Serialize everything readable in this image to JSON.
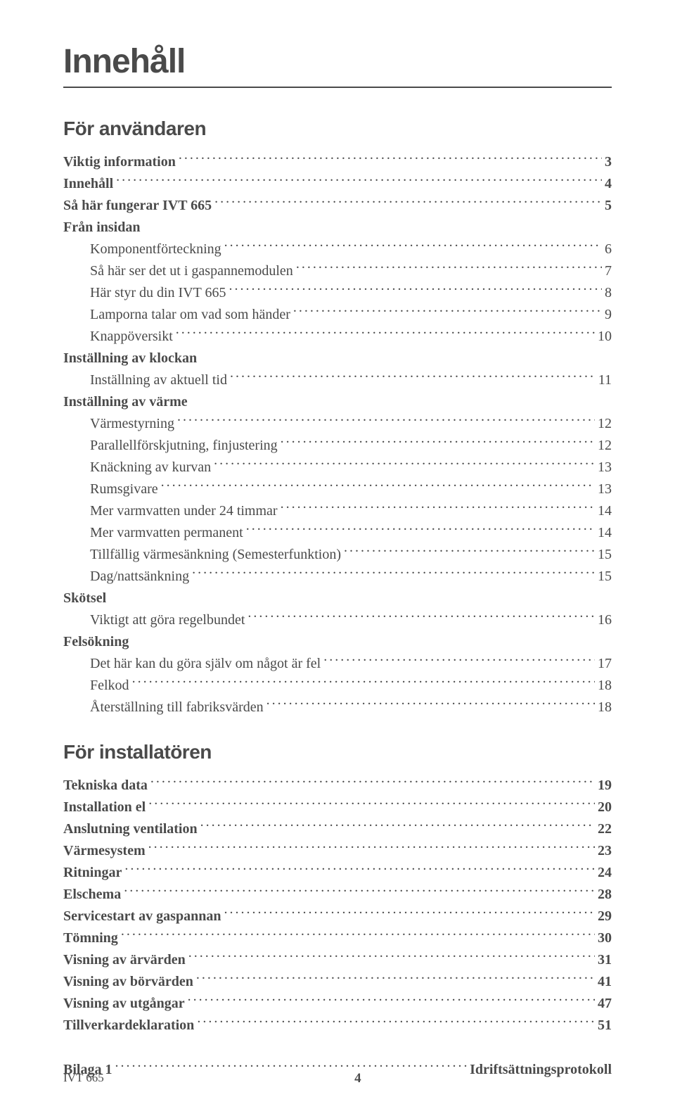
{
  "title": "Innehåll",
  "sections": [
    {
      "head": "För användaren",
      "rows": [
        {
          "label": "Viktig information",
          "page": "3",
          "bold": true,
          "indent": false
        },
        {
          "label": "Innehåll",
          "page": "4",
          "bold": true,
          "indent": false
        },
        {
          "label": "Så här fungerar IVT 665",
          "page": "5",
          "bold": true,
          "indent": false
        },
        {
          "label": "Från insidan",
          "page": "",
          "bold": true,
          "indent": false,
          "noleader": true
        },
        {
          "label": "Komponentförteckning",
          "page": "6",
          "bold": false,
          "indent": true
        },
        {
          "label": "Så här ser det ut i gaspannemodulen",
          "page": "7",
          "bold": false,
          "indent": true
        },
        {
          "label": "Här styr du din IVT 665",
          "page": "8",
          "bold": false,
          "indent": true
        },
        {
          "label": "Lamporna talar om vad som händer",
          "page": "9",
          "bold": false,
          "indent": true
        },
        {
          "label": "Knappöversikt",
          "page": "10",
          "bold": false,
          "indent": true
        },
        {
          "label": "Inställning av klockan",
          "page": "",
          "bold": true,
          "indent": false,
          "noleader": true
        },
        {
          "label": "Inställning av aktuell tid",
          "page": "11",
          "bold": false,
          "indent": true
        },
        {
          "label": "Inställning av värme",
          "page": "",
          "bold": true,
          "indent": false,
          "noleader": true
        },
        {
          "label": "Värmestyrning",
          "page": "12",
          "bold": false,
          "indent": true
        },
        {
          "label": "Parallellförskjutning, finjustering",
          "page": "12",
          "bold": false,
          "indent": true
        },
        {
          "label": "Knäckning av kurvan",
          "page": "13",
          "bold": false,
          "indent": true
        },
        {
          "label": "Rumsgivare",
          "page": "13",
          "bold": false,
          "indent": true
        },
        {
          "label": "Mer varmvatten under 24 timmar",
          "page": "14",
          "bold": false,
          "indent": true
        },
        {
          "label": "Mer varmvatten permanent",
          "page": "14",
          "bold": false,
          "indent": true
        },
        {
          "label": "Tillfällig värmesänkning (Semesterfunktion)",
          "page": "15",
          "bold": false,
          "indent": true
        },
        {
          "label": "Dag/nattsänkning",
          "page": "15",
          "bold": false,
          "indent": true
        },
        {
          "label": "Skötsel",
          "page": "",
          "bold": true,
          "indent": false,
          "noleader": true
        },
        {
          "label": "Viktigt att göra regelbundet",
          "page": "16",
          "bold": false,
          "indent": true
        },
        {
          "label": "Felsökning",
          "page": "",
          "bold": true,
          "indent": false,
          "noleader": true
        },
        {
          "label": "Det här kan du göra själv om något är fel",
          "page": "17",
          "bold": false,
          "indent": true
        },
        {
          "label": "Felkod",
          "page": "18",
          "bold": false,
          "indent": true
        },
        {
          "label": "Återställning till fabriksvärden",
          "page": "18",
          "bold": false,
          "indent": true
        }
      ]
    },
    {
      "head": "För installatören",
      "rows": [
        {
          "label": "Tekniska data",
          "page": "19",
          "bold": true,
          "indent": false
        },
        {
          "label": "Installation el",
          "page": "20",
          "bold": true,
          "indent": false
        },
        {
          "label": "Anslutning ventilation",
          "page": "22",
          "bold": true,
          "indent": false
        },
        {
          "label": "Värmesystem",
          "page": "23",
          "bold": true,
          "indent": false
        },
        {
          "label": "Ritningar",
          "page": "24",
          "bold": true,
          "indent": false
        },
        {
          "label": "Elschema",
          "page": "28",
          "bold": true,
          "indent": false
        },
        {
          "label": "Servicestart av gaspannan",
          "page": "29",
          "bold": true,
          "indent": false
        },
        {
          "label": "Tömning",
          "page": "30",
          "bold": true,
          "indent": false
        },
        {
          "label": "Visning av ärvärden",
          "page": "31",
          "bold": true,
          "indent": false
        },
        {
          "label": "Visning av börvärden",
          "page": "41",
          "bold": true,
          "indent": false
        },
        {
          "label": "Visning av utgångar",
          "page": " 47",
          "bold": true,
          "indent": false
        },
        {
          "label": "Tillverkardeklaration",
          "page": " 51",
          "bold": true,
          "indent": false
        }
      ]
    }
  ],
  "appendix": {
    "label": "Bilaga 1",
    "page": " Idriftsättningsprotokoll"
  },
  "footer": {
    "model": "IVT 665",
    "pagenum": "4"
  }
}
